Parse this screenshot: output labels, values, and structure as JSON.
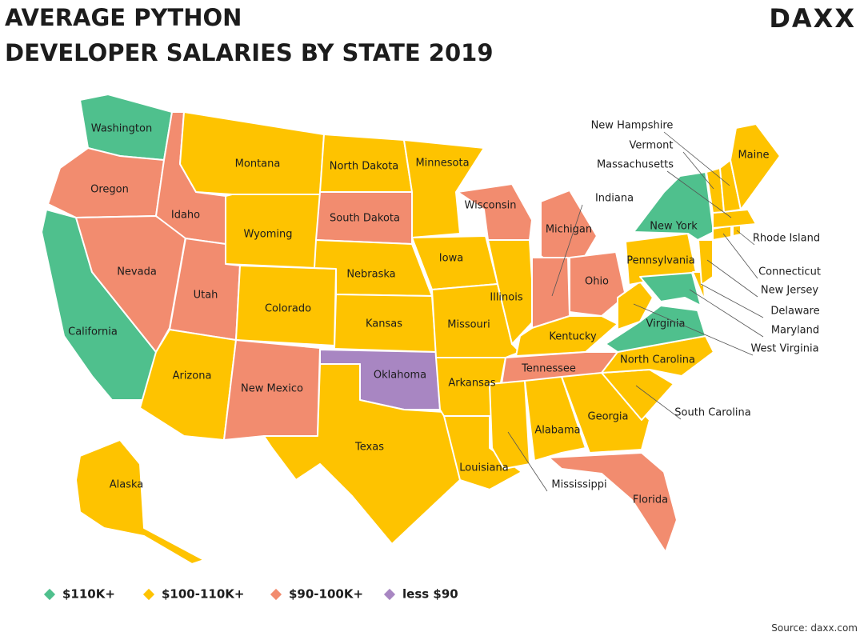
{
  "header": {
    "title_lines": [
      "AVERAGE PYTHON",
      "DEVELOPER SALARIES BY STATE 2019"
    ],
    "logo": "DAXX"
  },
  "legend": [
    {
      "label": "$110K+",
      "color": "#4fc08d"
    },
    {
      "label": "$100-110K+",
      "color": "#fec300"
    },
    {
      "label": "$90-100K+",
      "color": "#f28c6f"
    },
    {
      "label": "less $90",
      "color": "#a886c2"
    }
  ],
  "states": [
    {
      "name": "Washington",
      "tier": "$110K+"
    },
    {
      "name": "Oregon",
      "tier": "$90-100K+"
    },
    {
      "name": "California",
      "tier": "$110K+"
    },
    {
      "name": "Nevada",
      "tier": "$90-100K+"
    },
    {
      "name": "Idaho",
      "tier": "$90-100K+"
    },
    {
      "name": "Montana",
      "tier": "$100-110K+"
    },
    {
      "name": "Wyoming",
      "tier": "$100-110K+"
    },
    {
      "name": "Utah",
      "tier": "$90-100K+"
    },
    {
      "name": "Arizona",
      "tier": "$100-110K+"
    },
    {
      "name": "Colorado",
      "tier": "$100-110K+"
    },
    {
      "name": "New Mexico",
      "tier": "$90-100K+"
    },
    {
      "name": "North Dakota",
      "tier": "$100-110K+"
    },
    {
      "name": "South Dakota",
      "tier": "$90-100K+"
    },
    {
      "name": "Nebraska",
      "tier": "$100-110K+"
    },
    {
      "name": "Kansas",
      "tier": "$100-110K+"
    },
    {
      "name": "Oklahoma",
      "tier": "less $90"
    },
    {
      "name": "Texas",
      "tier": "$100-110K+"
    },
    {
      "name": "Minnesota",
      "tier": "$100-110K+"
    },
    {
      "name": "Iowa",
      "tier": "$100-110K+"
    },
    {
      "name": "Missouri",
      "tier": "$100-110K+"
    },
    {
      "name": "Arkansas",
      "tier": "$100-110K+"
    },
    {
      "name": "Louisiana",
      "tier": "$100-110K+"
    },
    {
      "name": "Wisconsin",
      "tier": "$90-100K+"
    },
    {
      "name": "Illinois",
      "tier": "$100-110K+"
    },
    {
      "name": "Michigan",
      "tier": "$90-100K+"
    },
    {
      "name": "Indiana",
      "tier": "$90-100K+"
    },
    {
      "name": "Ohio",
      "tier": "$90-100K+"
    },
    {
      "name": "Kentucky",
      "tier": "$100-110K+"
    },
    {
      "name": "Tennessee",
      "tier": "$90-100K+"
    },
    {
      "name": "Mississippi",
      "tier": "$100-110K+"
    },
    {
      "name": "Alabama",
      "tier": "$100-110K+"
    },
    {
      "name": "Georgia",
      "tier": "$100-110K+"
    },
    {
      "name": "Florida",
      "tier": "$90-100K+"
    },
    {
      "name": "South Carolina",
      "tier": "$100-110K+"
    },
    {
      "name": "North Carolina",
      "tier": "$100-110K+"
    },
    {
      "name": "Virginia",
      "tier": "$110K+"
    },
    {
      "name": "West Virginia",
      "tier": "$100-110K+"
    },
    {
      "name": "Pennsylvania",
      "tier": "$100-110K+"
    },
    {
      "name": "New York",
      "tier": "$110K+"
    },
    {
      "name": "Maryland",
      "tier": "$110K+"
    },
    {
      "name": "Delaware",
      "tier": "$100-110K+"
    },
    {
      "name": "New Jersey",
      "tier": "$100-110K+"
    },
    {
      "name": "Connecticut",
      "tier": "$100-110K+"
    },
    {
      "name": "Rhode Island",
      "tier": "$100-110K+"
    },
    {
      "name": "Massachusetts",
      "tier": "$100-110K+"
    },
    {
      "name": "Vermont",
      "tier": "$100-110K+"
    },
    {
      "name": "New Hampshire",
      "tier": "$100-110K+"
    },
    {
      "name": "Maine",
      "tier": "$100-110K+"
    },
    {
      "name": "Alaska",
      "tier": "$100-110K+"
    }
  ],
  "source": "Source: daxx.com"
}
